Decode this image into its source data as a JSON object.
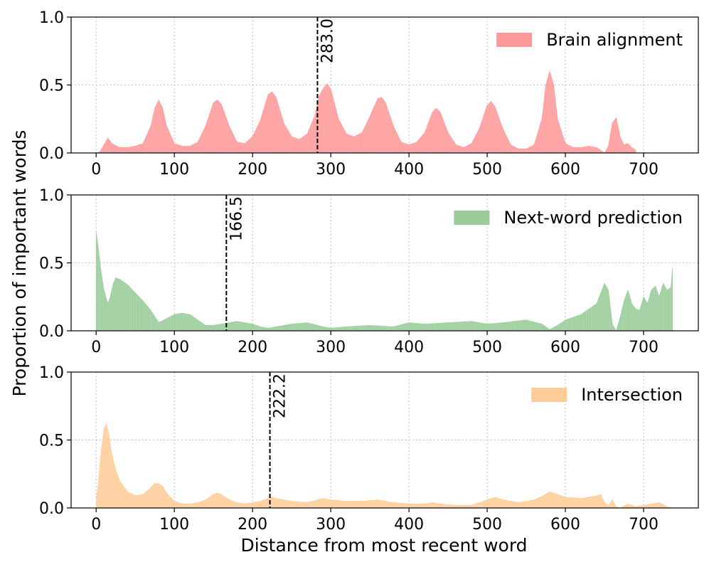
{
  "chart_data": [
    {
      "type": "area",
      "series": [
        {
          "name": "Brain alignment",
          "color": "#ff9999"
        }
      ],
      "x": [
        0,
        5,
        10,
        15,
        20,
        30,
        40,
        50,
        60,
        70,
        75,
        80,
        85,
        90,
        100,
        110,
        120,
        130,
        140,
        150,
        155,
        160,
        170,
        180,
        190,
        200,
        210,
        220,
        225,
        230,
        240,
        250,
        260,
        270,
        280,
        285,
        290,
        295,
        300,
        310,
        320,
        330,
        340,
        350,
        360,
        365,
        370,
        380,
        390,
        400,
        410,
        420,
        430,
        435,
        440,
        450,
        460,
        470,
        480,
        490,
        500,
        505,
        510,
        520,
        530,
        540,
        550,
        560,
        570,
        575,
        580,
        585,
        590,
        600,
        610,
        620,
        630,
        640,
        645,
        650,
        655,
        660,
        665,
        670,
        675,
        680,
        685,
        690
      ],
      "y": [
        0.0,
        0.01,
        0.06,
        0.11,
        0.07,
        0.04,
        0.04,
        0.05,
        0.07,
        0.2,
        0.33,
        0.39,
        0.33,
        0.2,
        0.07,
        0.05,
        0.05,
        0.08,
        0.2,
        0.37,
        0.39,
        0.36,
        0.2,
        0.08,
        0.07,
        0.12,
        0.24,
        0.43,
        0.45,
        0.41,
        0.22,
        0.12,
        0.1,
        0.14,
        0.28,
        0.42,
        0.47,
        0.51,
        0.47,
        0.25,
        0.14,
        0.12,
        0.15,
        0.27,
        0.4,
        0.41,
        0.37,
        0.2,
        0.08,
        0.06,
        0.08,
        0.15,
        0.3,
        0.33,
        0.3,
        0.15,
        0.06,
        0.04,
        0.07,
        0.18,
        0.35,
        0.38,
        0.34,
        0.18,
        0.06,
        0.03,
        0.03,
        0.06,
        0.25,
        0.5,
        0.6,
        0.5,
        0.25,
        0.07,
        0.04,
        0.04,
        0.05,
        0.04,
        0.02,
        0.0,
        0.05,
        0.22,
        0.26,
        0.12,
        0.06,
        0.07,
        0.04,
        0.02
      ],
      "xlim": [
        -32,
        770
      ],
      "ylim": [
        0,
        1.0
      ],
      "xticks": [
        0,
        100,
        200,
        300,
        400,
        500,
        600,
        700
      ],
      "yticks": [
        0.0,
        0.5,
        1.0
      ],
      "vline": {
        "x": 283.0,
        "label": "283.0"
      },
      "grid": true,
      "legend_position": "top-right"
    },
    {
      "type": "area",
      "series": [
        {
          "name": "Next-word prediction",
          "color": "#99cc99"
        }
      ],
      "x": [
        0,
        3,
        6,
        10,
        15,
        18,
        22,
        25,
        30,
        40,
        50,
        60,
        70,
        80,
        90,
        100,
        110,
        120,
        130,
        140,
        150,
        160,
        170,
        180,
        190,
        200,
        210,
        220,
        230,
        250,
        270,
        290,
        300,
        320,
        350,
        380,
        400,
        420,
        450,
        480,
        500,
        520,
        550,
        570,
        580,
        590,
        600,
        620,
        640,
        650,
        655,
        660,
        665,
        670,
        675,
        680,
        685,
        690,
        695,
        700,
        705,
        710,
        715,
        720,
        725,
        730,
        735,
        737
      ],
      "y": [
        0.73,
        0.6,
        0.45,
        0.3,
        0.2,
        0.25,
        0.35,
        0.39,
        0.38,
        0.34,
        0.28,
        0.22,
        0.15,
        0.06,
        0.09,
        0.12,
        0.13,
        0.12,
        0.08,
        0.04,
        0.04,
        0.05,
        0.06,
        0.07,
        0.06,
        0.05,
        0.03,
        0.02,
        0.03,
        0.05,
        0.06,
        0.03,
        0.02,
        0.03,
        0.04,
        0.03,
        0.06,
        0.05,
        0.06,
        0.07,
        0.05,
        0.06,
        0.08,
        0.05,
        0.01,
        0.04,
        0.08,
        0.12,
        0.2,
        0.35,
        0.3,
        0.05,
        0.0,
        0.1,
        0.22,
        0.3,
        0.2,
        0.16,
        0.15,
        0.25,
        0.2,
        0.3,
        0.33,
        0.25,
        0.35,
        0.3,
        0.32,
        0.46
      ],
      "xlim": [
        -32,
        770
      ],
      "ylim": [
        0,
        1.0
      ],
      "xticks": [
        0,
        100,
        200,
        300,
        400,
        500,
        600,
        700
      ],
      "yticks": [
        0.0,
        0.5,
        1.0
      ],
      "vline": {
        "x": 166.5,
        "label": "166.5"
      },
      "grid": true,
      "legend_position": "top-right"
    },
    {
      "type": "area",
      "series": [
        {
          "name": "Intersection",
          "color": "#ffcc99"
        }
      ],
      "x": [
        0,
        3,
        6,
        10,
        13,
        16,
        20,
        25,
        30,
        40,
        50,
        60,
        70,
        75,
        80,
        85,
        90,
        100,
        110,
        120,
        130,
        140,
        150,
        155,
        160,
        170,
        180,
        190,
        200,
        210,
        220,
        225,
        230,
        250,
        270,
        290,
        300,
        320,
        340,
        360,
        370,
        380,
        400,
        420,
        430,
        440,
        460,
        480,
        500,
        510,
        520,
        540,
        560,
        575,
        580,
        585,
        600,
        620,
        640,
        645,
        650,
        655,
        660,
        665,
        670,
        680,
        690,
        700,
        710,
        720,
        730,
        737
      ],
      "y": [
        0.05,
        0.2,
        0.4,
        0.58,
        0.62,
        0.55,
        0.4,
        0.28,
        0.2,
        0.12,
        0.09,
        0.1,
        0.15,
        0.18,
        0.18,
        0.16,
        0.11,
        0.05,
        0.03,
        0.03,
        0.04,
        0.06,
        0.1,
        0.11,
        0.1,
        0.06,
        0.04,
        0.03,
        0.04,
        0.05,
        0.07,
        0.08,
        0.07,
        0.05,
        0.04,
        0.07,
        0.06,
        0.05,
        0.05,
        0.06,
        0.05,
        0.04,
        0.03,
        0.03,
        0.04,
        0.03,
        0.02,
        0.02,
        0.06,
        0.08,
        0.06,
        0.04,
        0.06,
        0.1,
        0.12,
        0.11,
        0.08,
        0.07,
        0.09,
        0.1,
        0.04,
        0.02,
        0.06,
        0.01,
        0.0,
        0.03,
        0.01,
        0.02,
        0.03,
        0.04,
        0.01,
        0.0
      ],
      "xlim": [
        -32,
        770
      ],
      "ylim": [
        0,
        1.0
      ],
      "xticks": [
        0,
        100,
        200,
        300,
        400,
        500,
        600,
        700
      ],
      "yticks": [
        0.0,
        0.5,
        1.0
      ],
      "vline": {
        "x": 222.2,
        "label": "222.2"
      },
      "grid": true,
      "legend_position": "top-right"
    }
  ],
  "xlabel": "Distance from most recent word",
  "ylabel": "Proportion of important words"
}
